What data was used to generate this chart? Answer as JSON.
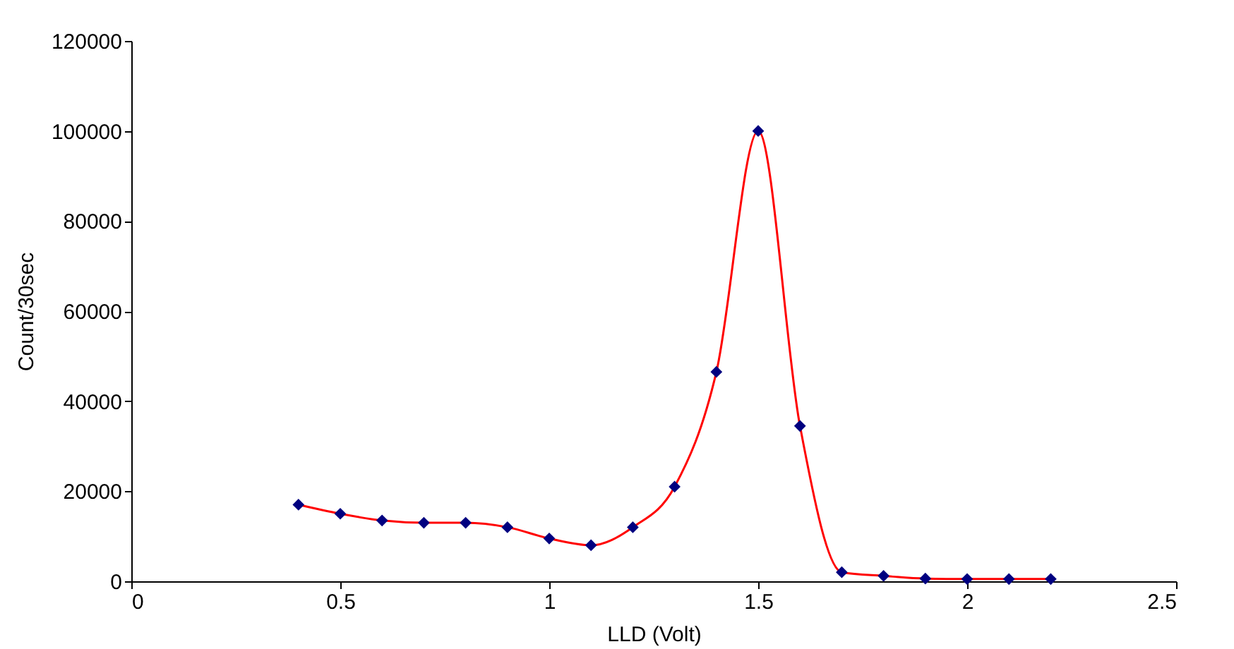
{
  "chart_data": {
    "type": "line",
    "xlabel": "LLD (Volt)",
    "ylabel": "Count/30sec",
    "x": [
      0.4,
      0.5,
      0.6,
      0.7,
      0.8,
      0.9,
      1.0,
      1.1,
      1.2,
      1.3,
      1.4,
      1.5,
      1.6,
      1.7,
      1.8,
      1.9,
      2.0,
      2.1,
      2.2
    ],
    "series": [
      {
        "color": "#ff0000",
        "marker": "none",
        "values": [
          17000,
          15000,
          13500,
          13000,
          13000,
          12000,
          9500,
          8000,
          12000,
          21000,
          46500,
          100000,
          34500,
          2000,
          1200,
          600,
          500,
          500,
          500
        ]
      },
      {
        "type": "scatter",
        "color": "#000080",
        "marker": "diamond",
        "values": [
          17000,
          15000,
          13500,
          13000,
          13000,
          12000,
          9500,
          8000,
          12000,
          21000,
          46500,
          100000,
          34500,
          2000,
          1200,
          600,
          500,
          500,
          500
        ]
      }
    ],
    "xlim": [
      0,
      2.5
    ],
    "xticks": [
      0,
      0.5,
      1,
      1.5,
      2,
      2.5
    ],
    "ylim": [
      0,
      120000
    ],
    "yticks": [
      0,
      20000,
      40000,
      60000,
      80000,
      100000,
      120000
    ],
    "grid": false
  }
}
